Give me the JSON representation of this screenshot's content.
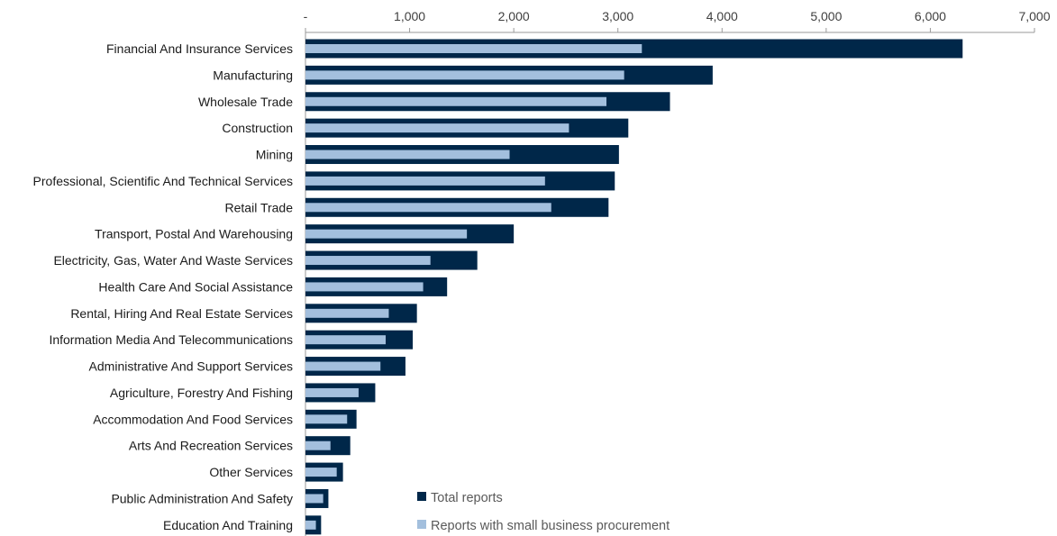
{
  "chart_data": {
    "type": "bar",
    "orientation": "horizontal",
    "categories": [
      "Financial And Insurance Services",
      "Manufacturing",
      "Wholesale Trade",
      "Construction",
      "Mining",
      "Professional, Scientific And Technical Services",
      "Retail Trade",
      "Transport, Postal And Warehousing",
      "Electricity, Gas, Water And Waste Services",
      "Health Care And Social Assistance",
      "Rental, Hiring And Real Estate Services",
      "Information Media And Telecommunications",
      "Administrative And Support Services",
      "Agriculture, Forestry And Fishing",
      "Accommodation And Food Services",
      "Arts And Recreation Services",
      "Other Services",
      "Public Administration And Safety",
      "Education And Training"
    ],
    "series": [
      {
        "name": "Total reports",
        "color": "#002749",
        "values": [
          6310,
          3910,
          3500,
          3100,
          3010,
          2970,
          2910,
          2000,
          1650,
          1360,
          1070,
          1030,
          960,
          670,
          490,
          430,
          360,
          220,
          150
        ]
      },
      {
        "name": "Reports with small business procurement",
        "color": "#a3bfdd",
        "values": [
          3230,
          3060,
          2890,
          2530,
          1960,
          2300,
          2360,
          1550,
          1200,
          1130,
          800,
          770,
          720,
          510,
          400,
          240,
          300,
          170,
          100
        ]
      }
    ],
    "x_ticks": [
      "-",
      "1,000",
      "2,000",
      "3,000",
      "4,000",
      "5,000",
      "6,000",
      "7,000"
    ],
    "xlim": [
      0,
      7000
    ],
    "xaxis_position": "top",
    "grid": false,
    "legend_position": "bottom-center",
    "title": "",
    "xlabel": "",
    "ylabel": ""
  }
}
